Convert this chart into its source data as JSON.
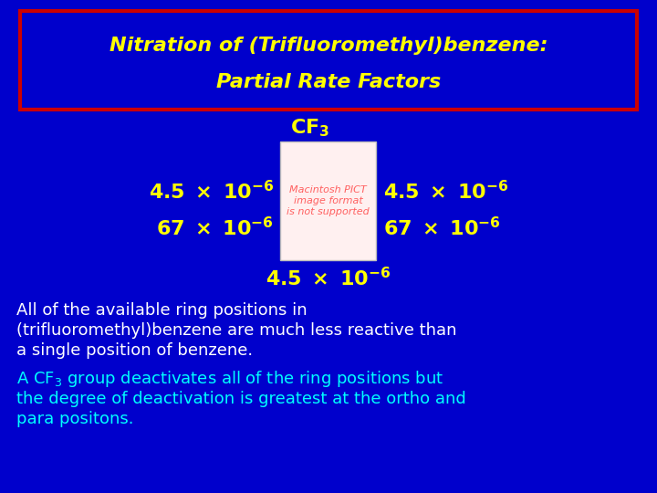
{
  "bg_color": "#0000CC",
  "title_line1": "Nitration of (Trifluoromethyl)benzene:",
  "title_line2": "Partial Rate Factors",
  "title_color": "#FFFF00",
  "title_box_edge_color": "#CC0000",
  "rate_color": "#FFFF00",
  "cf3_color": "#FFFF00",
  "pict_box_color": "#FFF0F0",
  "pict_text": "Macintosh PICT\nimage format\nis not supported",
  "pict_text_color": "#FF6060",
  "white_text_color": "#FFFFFF",
  "cyan_text_color": "#00FFFF",
  "title_fontsize": 16,
  "rate_fontsize": 16,
  "body_fontsize": 13
}
